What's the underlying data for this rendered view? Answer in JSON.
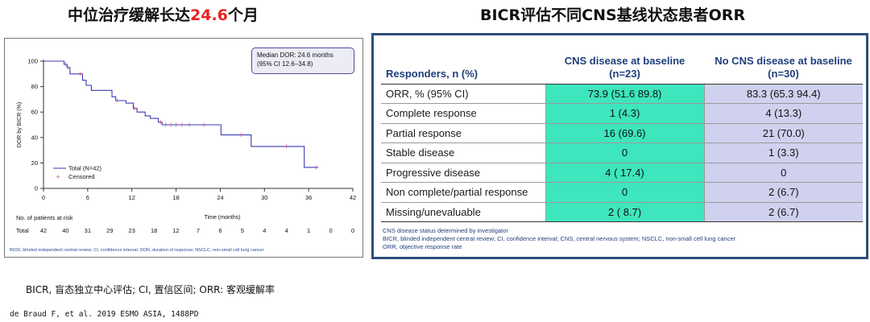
{
  "left_heading": {
    "prefix": "中位治疗缓解长达",
    "highlight": "24.6",
    "suffix": "个月"
  },
  "right_heading": "BICR评估不同CNS基线状态患者ORR",
  "km_chart": {
    "median_line1": "Median DOR: 24.6 months",
    "median_line2": "(95% CI 12.6–34.8)",
    "risk_header": "No. of patients at risk",
    "risk_row_label": "Total",
    "footnote": "BICR, blinded independent central review; CI, confidence interval; DOR, duration of response; NSCLC, non-small cell lung cancer",
    "legend": {
      "line": "Total (N=42)",
      "censored": "Censored"
    },
    "colors": {
      "curve": "#3a3ab8",
      "censor": "#d95f8a",
      "axis": "#333333"
    }
  },
  "chart_data": {
    "type": "line",
    "title": "",
    "xlabel": "Time (months)",
    "ylabel": "DOR by BICR (%)",
    "xlim": [
      0,
      42
    ],
    "ylim": [
      0,
      100
    ],
    "x_ticks": [
      0,
      6,
      12,
      18,
      24,
      30,
      36,
      42
    ],
    "y_ticks": [
      0,
      20,
      40,
      60,
      80,
      100
    ],
    "series": [
      {
        "name": "Total (N=42)",
        "step_points": [
          [
            0,
            100
          ],
          [
            2.8,
            100
          ],
          [
            2.8,
            97.5
          ],
          [
            3.2,
            97.5
          ],
          [
            3.2,
            95
          ],
          [
            3.6,
            95
          ],
          [
            3.6,
            90
          ],
          [
            5.3,
            90
          ],
          [
            5.3,
            85
          ],
          [
            5.8,
            85
          ],
          [
            5.8,
            81
          ],
          [
            6.5,
            81
          ],
          [
            6.5,
            77
          ],
          [
            9.3,
            77
          ],
          [
            9.3,
            72
          ],
          [
            9.8,
            72
          ],
          [
            9.8,
            69
          ],
          [
            11.2,
            69
          ],
          [
            11.2,
            67
          ],
          [
            12.2,
            67
          ],
          [
            12.2,
            63
          ],
          [
            12.7,
            63
          ],
          [
            12.7,
            60
          ],
          [
            13.8,
            60
          ],
          [
            13.8,
            57
          ],
          [
            14.5,
            57
          ],
          [
            14.5,
            55
          ],
          [
            15.6,
            55
          ],
          [
            15.6,
            52
          ],
          [
            16.1,
            52
          ],
          [
            16.1,
            50
          ],
          [
            24.1,
            50
          ],
          [
            24.1,
            42
          ],
          [
            28.2,
            42
          ],
          [
            28.2,
            33
          ],
          [
            35.4,
            33
          ],
          [
            35.4,
            16.5
          ],
          [
            37.3,
            16.5
          ]
        ],
        "censored": [
          [
            3.0,
            97.5
          ],
          [
            3.3,
            95
          ],
          [
            5.0,
            90
          ],
          [
            10.0,
            69
          ],
          [
            12.3,
            63
          ],
          [
            15.9,
            52
          ],
          [
            16.6,
            50
          ],
          [
            17.3,
            50
          ],
          [
            18.0,
            50
          ],
          [
            18.8,
            50
          ],
          [
            19.8,
            50
          ],
          [
            21.8,
            50
          ],
          [
            26.8,
            42
          ],
          [
            33.0,
            33
          ],
          [
            37.0,
            16.5
          ]
        ]
      }
    ],
    "risk_times": [
      0,
      3,
      6,
      9,
      12,
      15,
      18,
      21,
      24,
      27,
      30,
      33,
      36,
      39,
      42
    ],
    "risk_values": [
      42,
      40,
      31,
      29,
      23,
      18,
      12,
      7,
      6,
      5,
      4,
      4,
      1,
      0,
      0
    ],
    "legend_position": "bottom-left"
  },
  "table": {
    "header": {
      "label": "Responders, n (%)",
      "col1_line1": "CNS disease at baseline",
      "col1_line2": "(n=23)",
      "col2_line1": "No CNS disease at baseline",
      "col2_line2": "(n=30)"
    },
    "rows": [
      {
        "label": "ORR, % (95% CI)",
        "c1": "73.9 (51.6  89.8)",
        "c2": "83.3 (65.3  94.4)"
      },
      {
        "label": "Complete response",
        "c1": "1 (4.3)",
        "c2": "4 (13.3)"
      },
      {
        "label": "Partial response",
        "c1": "16 (69.6)",
        "c2": "21 (70.0)"
      },
      {
        "label": "Stable disease",
        "c1": "0",
        "c2": "1 (3.3)"
      },
      {
        "label": "Progressive disease",
        "c1": "4 ( 17.4)",
        "c2": "0"
      },
      {
        "label": "Non complete/partial response",
        "c1": "0",
        "c2": "2 (6.7)"
      },
      {
        "label": "Missing/unevaluable",
        "c1": "2 ( 8.7)",
        "c2": "2 (6.7)"
      }
    ],
    "notes": [
      "CNS disease status determined by investigator",
      "BICR, blinded independent central review; CI, confidence interval; CNS, central nervous system; NSCLC, non-small cell lung cancer",
      "ORR, objective response rate"
    ],
    "colors": {
      "col1_bg": "#3ee6bd",
      "col2_bg": "#cfd1ee",
      "header_text": "#1f3f7a",
      "border": "#2d4e7e"
    }
  },
  "abbrev_line": "BICR, 盲态独立中心评估; CI, 置信区间;  ORR: 客观缓解率",
  "citation": "de Braud F, et al. 2019 ESMO ASIA, 1488PD"
}
